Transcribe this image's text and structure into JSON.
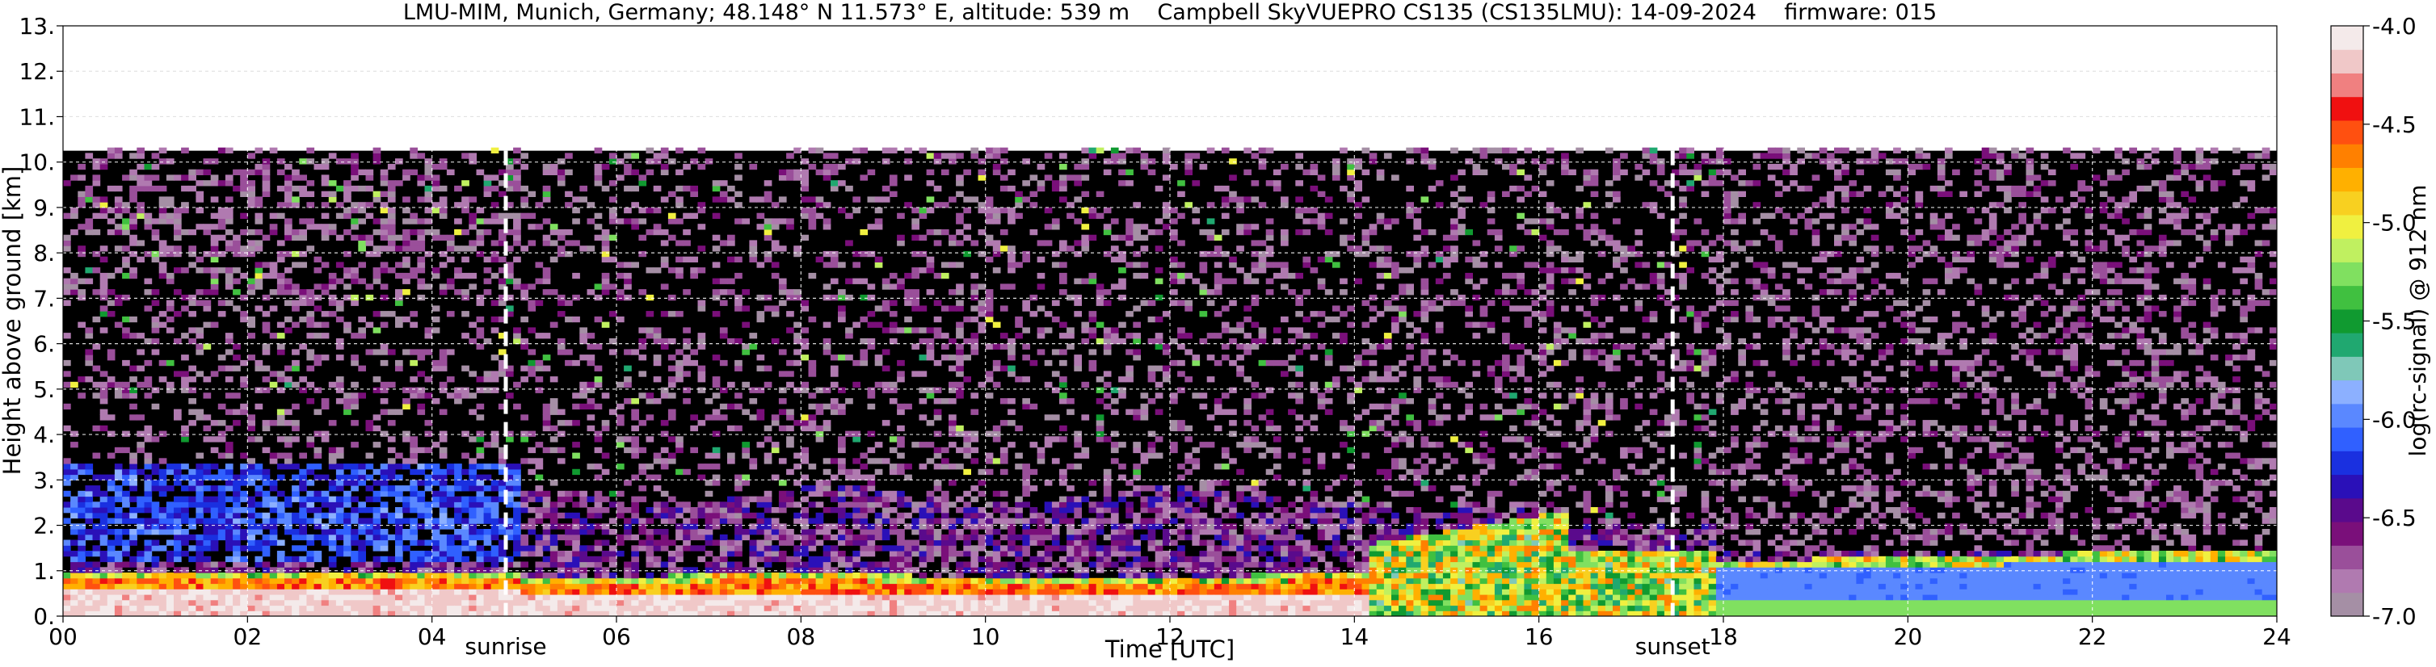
{
  "chart_data": {
    "type": "heatmap",
    "title": "LMU-MIM, Munich, Germany; 48.148° N 11.573° E, altitude: 539 m    Campbell SkyVUEPRO CS135 (CS135LMU): 14-09-2024    firmware: 015",
    "xlabel": "Time [UTC]",
    "ylabel": "Height above ground [km]",
    "colorbar_label": "log(rc-signal) @ 912 nm",
    "xlim": [
      0,
      24
    ],
    "ylim": [
      0,
      13
    ],
    "x_ticks": [
      0,
      2,
      4,
      6,
      8,
      10,
      12,
      14,
      16,
      18,
      20,
      22,
      24
    ],
    "x_tick_labels": [
      "00",
      "02",
      "04",
      "06",
      "08",
      "10",
      "12",
      "14",
      "16",
      "18",
      "20",
      "22",
      "24"
    ],
    "y_ticks": [
      0,
      1,
      2,
      3,
      4,
      5,
      6,
      7,
      8,
      9,
      10,
      11,
      12,
      13
    ],
    "y_tick_labels": [
      "0.",
      "1.",
      "2.",
      "3.",
      "4.",
      "5.",
      "6.",
      "7.",
      "8.",
      "9.",
      "10.",
      "11.",
      "12.",
      "13."
    ],
    "grid": true,
    "color_range": [
      -7.0,
      -4.0
    ],
    "colorbar_ticks": [
      -4.0,
      -4.5,
      -5.0,
      -5.5,
      -6.0,
      -6.5,
      -7.0
    ],
    "colorbar_tick_labels": [
      "-4.0",
      "-4.5",
      "-5.0",
      "-5.5",
      "-6.0",
      "-6.5",
      "-7.0"
    ],
    "colorbar_colors": [
      "#a58fa5",
      "#b07ab0",
      "#9a4f9a",
      "#7a0f7a",
      "#5a0a8c",
      "#2a10b8",
      "#1a30e0",
      "#3060ff",
      "#5a88ff",
      "#8cb0ff",
      "#7fc8b8",
      "#20a870",
      "#109a30",
      "#40c040",
      "#80e060",
      "#c0f060",
      "#f0f040",
      "#f8d020",
      "#ffb000",
      "#ff8000",
      "#ff5010",
      "#f01010",
      "#f08080",
      "#f0c8c8",
      "#f4eaea"
    ],
    "data_max_height_km": 10.25,
    "annotations": [
      {
        "label": "sunrise",
        "x": 4.8
      },
      {
        "label": "sunset",
        "x": 17.45
      }
    ]
  }
}
